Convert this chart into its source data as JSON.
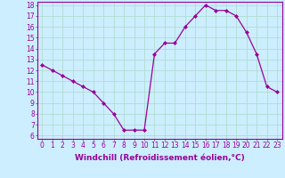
{
  "hours": [
    0,
    1,
    2,
    3,
    4,
    5,
    6,
    7,
    8,
    9,
    10,
    11,
    12,
    13,
    14,
    15,
    16,
    17,
    18,
    19,
    20,
    21,
    22,
    23
  ],
  "values": [
    12.5,
    12.0,
    11.5,
    11.0,
    10.5,
    10.0,
    9.0,
    8.0,
    6.5,
    6.5,
    6.5,
    13.5,
    14.5,
    14.5,
    16.0,
    17.0,
    18.0,
    17.5,
    17.5,
    17.0,
    15.5,
    13.5,
    10.5,
    10.0
  ],
  "xlabel": "Windchill (Refroidissement éolien,°C)",
  "ylim": [
    6,
    18
  ],
  "xlim": [
    -0.5,
    23.5
  ],
  "yticks": [
    6,
    7,
    8,
    9,
    10,
    11,
    12,
    13,
    14,
    15,
    16,
    17,
    18
  ],
  "xticks": [
    0,
    1,
    2,
    3,
    4,
    5,
    6,
    7,
    8,
    9,
    10,
    11,
    12,
    13,
    14,
    15,
    16,
    17,
    18,
    19,
    20,
    21,
    22,
    23
  ],
  "line_color": "#990099",
  "marker": "D",
  "marker_size": 2.0,
  "bg_color": "#cceeff",
  "grid_color": "#aaddcc",
  "tick_fontsize": 5.5,
  "label_fontsize": 6.5
}
